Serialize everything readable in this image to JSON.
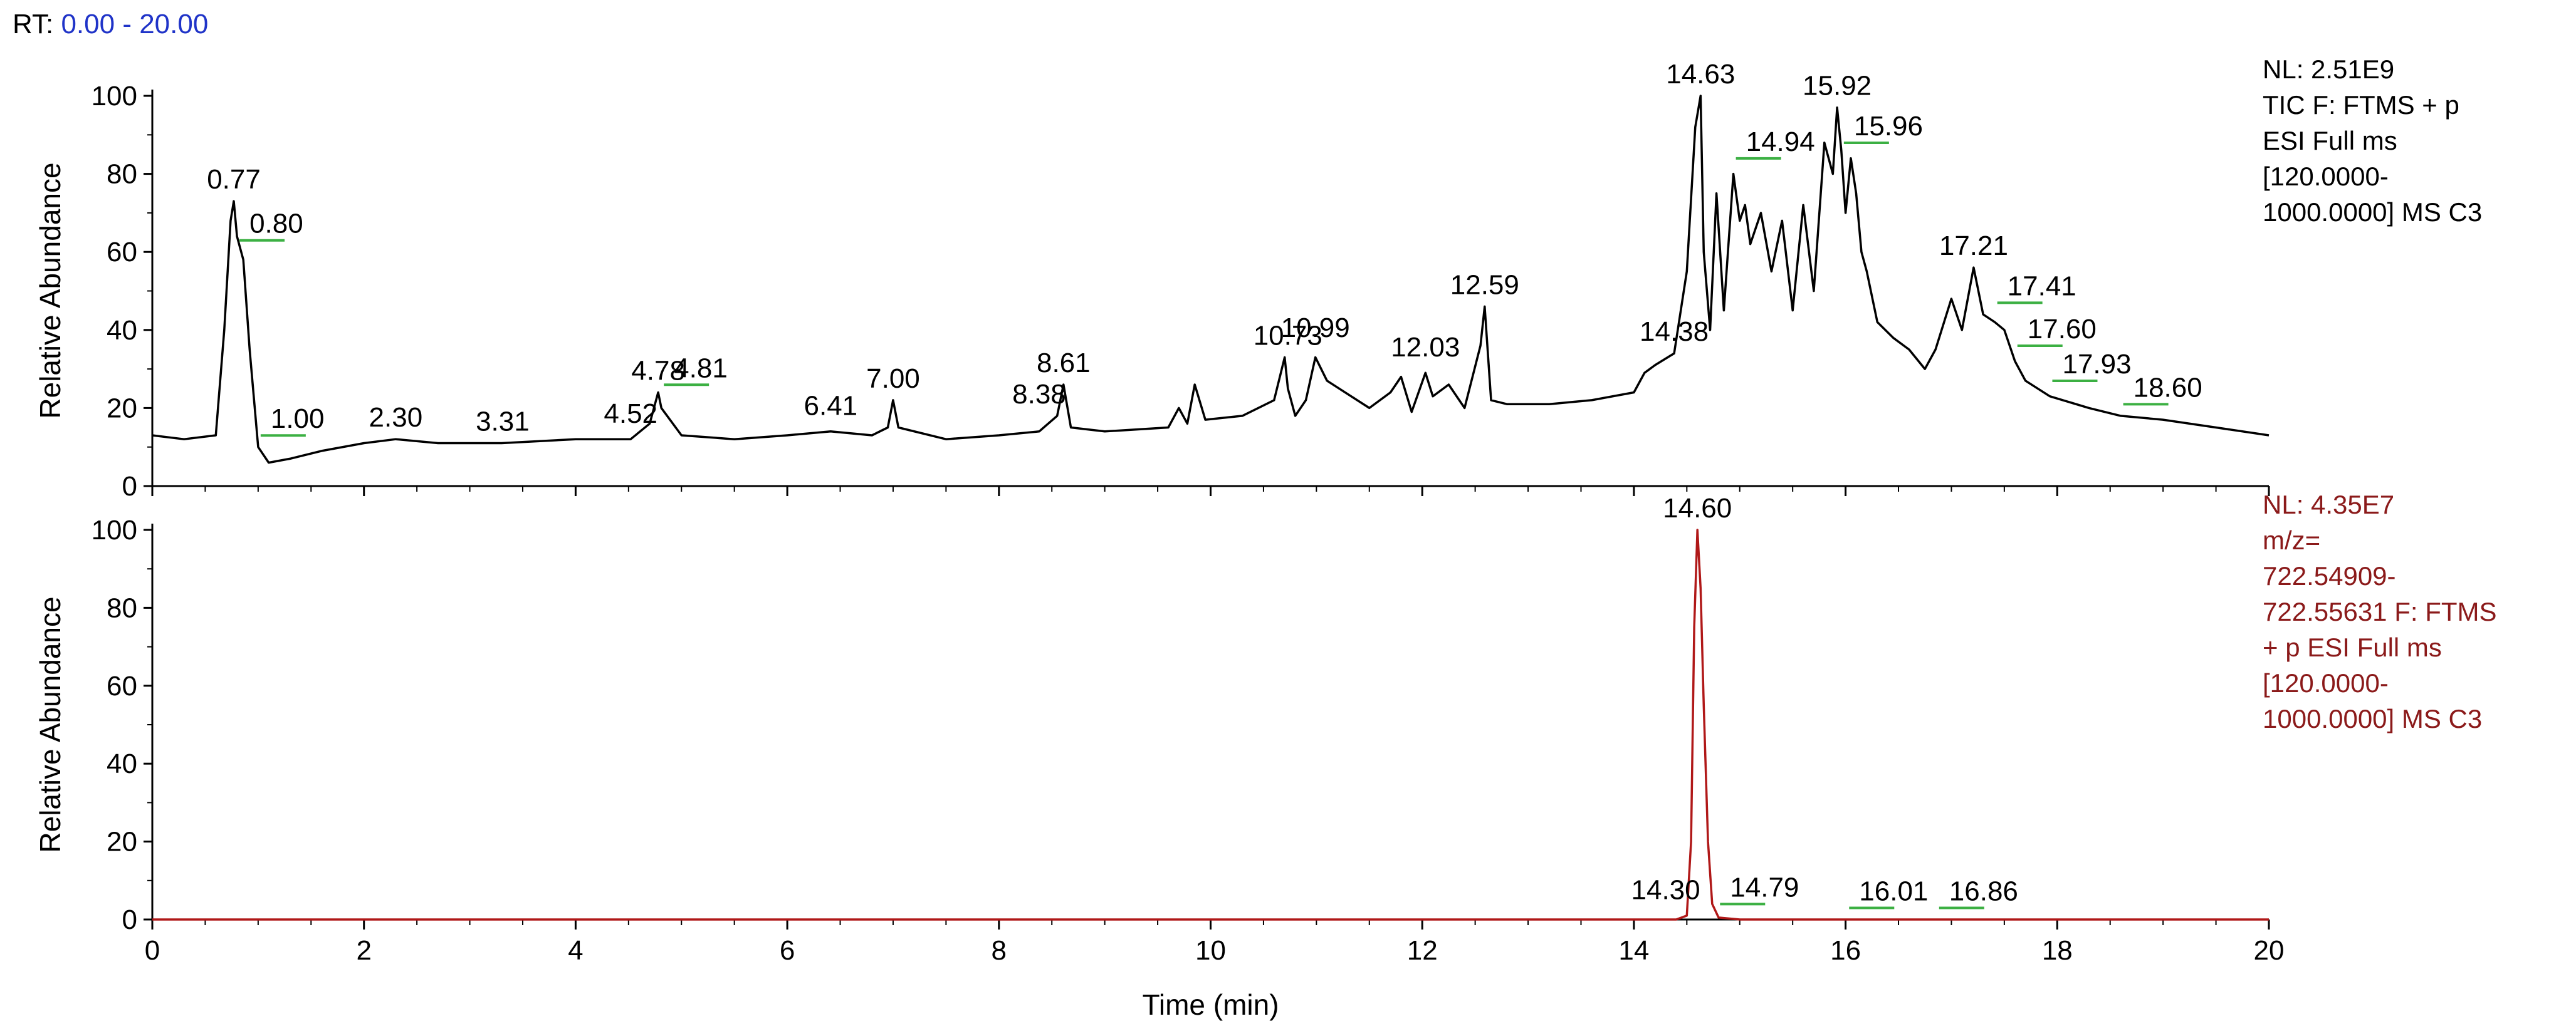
{
  "header": {
    "rt_prefix": "RT:",
    "rt_range": "0.00 - 20.00"
  },
  "chart_data": [
    {
      "type": "line",
      "xlim": [
        0,
        20
      ],
      "ylim": [
        0,
        100
      ],
      "ylabel": "Relative Abundance",
      "x_ticks": [
        0,
        2,
        4,
        6,
        8,
        10,
        12,
        14,
        16,
        18,
        20
      ],
      "y_ticks": [
        0,
        20,
        40,
        60,
        80,
        100
      ],
      "line_color": "#000000",
      "info_color": "#000000",
      "info_lines": [
        "NL: 2.51E9",
        "TIC F: FTMS + p",
        "ESI Full ms",
        "[120.0000-",
        "1000.0000]  MS C3"
      ],
      "series": [
        {
          "x": [
            0,
            0.3,
            0.6,
            0.68,
            0.74,
            0.77,
            0.8,
            0.86,
            0.92,
            1.0,
            1.1,
            1.3,
            1.6,
            2.0,
            2.3,
            2.7,
            3.3,
            4.0,
            4.52,
            4.7,
            4.78,
            4.81,
            5.0,
            5.5,
            6.0,
            6.41,
            6.8,
            6.95,
            7.0,
            7.05,
            7.5,
            8.0,
            8.38,
            8.55,
            8.61,
            8.68,
            9.0,
            9.6,
            9.7,
            9.78,
            9.85,
            9.95,
            10.3,
            10.6,
            10.7,
            10.73,
            10.8,
            10.9,
            10.99,
            11.1,
            11.5,
            11.7,
            11.8,
            11.9,
            12.03,
            12.1,
            12.25,
            12.4,
            12.55,
            12.59,
            12.65,
            12.8,
            13.2,
            13.6,
            14.0,
            14.1,
            14.2,
            14.38,
            14.5,
            14.58,
            14.63,
            14.66,
            14.72,
            14.78,
            14.85,
            14.94,
            15.0,
            15.05,
            15.1,
            15.2,
            15.3,
            15.4,
            15.5,
            15.6,
            15.7,
            15.8,
            15.88,
            15.92,
            15.96,
            16.0,
            16.05,
            16.1,
            16.15,
            16.2,
            16.3,
            16.45,
            16.6,
            16.75,
            16.85,
            17.0,
            17.1,
            17.21,
            17.3,
            17.41,
            17.5,
            17.6,
            17.7,
            17.93,
            18.3,
            18.6,
            19.0,
            19.5,
            20.0
          ],
          "y": [
            13,
            12,
            13,
            40,
            68,
            73,
            64,
            58,
            35,
            10,
            6,
            7,
            9,
            11,
            12,
            11,
            11,
            12,
            12,
            16,
            24,
            20,
            13,
            12,
            13,
            14,
            13,
            15,
            22,
            15,
            12,
            13,
            14,
            18,
            26,
            15,
            14,
            15,
            20,
            16,
            26,
            17,
            18,
            22,
            33,
            25,
            18,
            22,
            33,
            27,
            20,
            24,
            28,
            19,
            29,
            23,
            26,
            20,
            36,
            46,
            22,
            21,
            21,
            22,
            24,
            29,
            31,
            34,
            55,
            92,
            100,
            60,
            40,
            75,
            45,
            80,
            68,
            72,
            62,
            70,
            55,
            68,
            45,
            72,
            50,
            88,
            80,
            97,
            86,
            70,
            84,
            75,
            60,
            55,
            42,
            38,
            35,
            30,
            35,
            48,
            40,
            56,
            44,
            42,
            40,
            32,
            27,
            23,
            20,
            18,
            17,
            15,
            13
          ]
        }
      ],
      "peak_labels": [
        {
          "x": 0.77,
          "y": 73,
          "text": "0.77",
          "shape": "label"
        },
        {
          "x": 0.8,
          "y": 62,
          "text": "0.80",
          "shape": "flag"
        },
        {
          "x": 1.0,
          "y": 12,
          "text": "1.00",
          "shape": "flag"
        },
        {
          "x": 2.3,
          "y": 12,
          "text": "2.30",
          "shape": "label"
        },
        {
          "x": 3.31,
          "y": 11,
          "text": "3.31",
          "shape": "label"
        },
        {
          "x": 4.52,
          "y": 13,
          "text": "4.52",
          "shape": "label"
        },
        {
          "x": 4.78,
          "y": 24,
          "text": "4.78",
          "shape": "label"
        },
        {
          "x": 4.81,
          "y": 25,
          "text": "4.81",
          "shape": "flag"
        },
        {
          "x": 6.41,
          "y": 15,
          "text": "6.41",
          "shape": "label"
        },
        {
          "x": 7.0,
          "y": 22,
          "text": "7.00",
          "shape": "label"
        },
        {
          "x": 8.38,
          "y": 18,
          "text": "8.38",
          "shape": "label"
        },
        {
          "x": 8.61,
          "y": 26,
          "text": "8.61",
          "shape": "label"
        },
        {
          "x": 10.73,
          "y": 33,
          "text": "10.73",
          "shape": "label"
        },
        {
          "x": 10.99,
          "y": 35,
          "text": "10.99",
          "shape": "label"
        },
        {
          "x": 12.03,
          "y": 30,
          "text": "12.03",
          "shape": "label"
        },
        {
          "x": 12.59,
          "y": 46,
          "text": "12.59",
          "shape": "label"
        },
        {
          "x": 14.38,
          "y": 34,
          "text": "14.38",
          "shape": "label"
        },
        {
          "x": 14.63,
          "y": 100,
          "text": "14.63",
          "shape": "label"
        },
        {
          "x": 14.94,
          "y": 83,
          "text": "14.94",
          "shape": "flag"
        },
        {
          "x": 15.92,
          "y": 97,
          "text": "15.92",
          "shape": "label"
        },
        {
          "x": 15.96,
          "y": 87,
          "text": "15.96",
          "shape": "flag"
        },
        {
          "x": 17.21,
          "y": 56,
          "text": "17.21",
          "shape": "label"
        },
        {
          "x": 17.41,
          "y": 46,
          "text": "17.41",
          "shape": "flag"
        },
        {
          "x": 17.6,
          "y": 35,
          "text": "17.60",
          "shape": "flag"
        },
        {
          "x": 17.93,
          "y": 26,
          "text": "17.93",
          "shape": "flag"
        },
        {
          "x": 18.6,
          "y": 20,
          "text": "18.60",
          "shape": "flag"
        }
      ]
    },
    {
      "type": "line",
      "xlim": [
        0,
        20
      ],
      "ylim": [
        0,
        100
      ],
      "xlabel": "Time (min)",
      "ylabel": "Relative Abundance",
      "x_ticks": [
        0,
        2,
        4,
        6,
        8,
        10,
        12,
        14,
        16,
        18,
        20
      ],
      "y_ticks": [
        0,
        20,
        40,
        60,
        80,
        100
      ],
      "line_color": "#b01818",
      "info_color": "#8b1a1a",
      "info_lines": [
        "NL: 4.35E7",
        "m/z=",
        "722.54909-",
        "722.55631 F: FTMS",
        "+ p ESI Full ms",
        "[120.0000-",
        "1000.0000]  MS C3"
      ],
      "series": [
        {
          "x": [
            0,
            14.0,
            14.4,
            14.5,
            14.54,
            14.57,
            14.6,
            14.63,
            14.66,
            14.7,
            14.74,
            14.8,
            15.0,
            20.0
          ],
          "y": [
            0,
            0,
            0,
            1,
            20,
            75,
            100,
            85,
            55,
            20,
            4,
            0.5,
            0,
            0
          ]
        }
      ],
      "peak_labels": [
        {
          "x": 14.3,
          "y": 2,
          "text": "14.30",
          "shape": "label"
        },
        {
          "x": 14.6,
          "y": 100,
          "text": "14.60",
          "shape": "label"
        },
        {
          "x": 14.79,
          "y": 3,
          "text": "14.79",
          "shape": "flag"
        },
        {
          "x": 16.01,
          "y": 2,
          "text": "16.01",
          "shape": "flag"
        },
        {
          "x": 16.86,
          "y": 2,
          "text": "16.86",
          "shape": "flag"
        }
      ]
    }
  ]
}
